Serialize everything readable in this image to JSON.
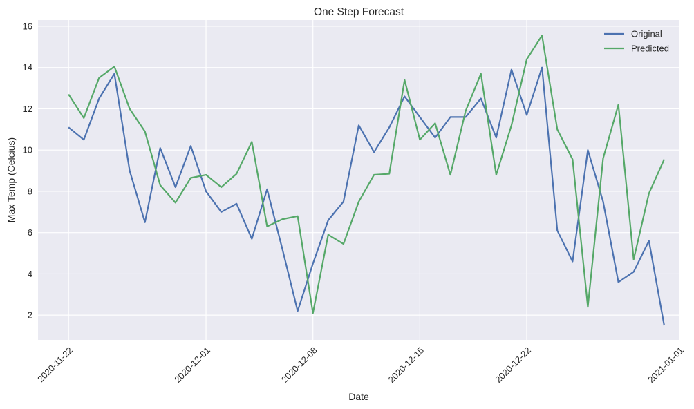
{
  "chart_data": {
    "type": "line",
    "title": "One Step Forecast",
    "xlabel": "Date",
    "ylabel": "Max Temp (Celcius)",
    "x": [
      "2020-11-22",
      "2020-11-23",
      "2020-11-24",
      "2020-11-25",
      "2020-11-26",
      "2020-11-27",
      "2020-11-28",
      "2020-11-29",
      "2020-11-30",
      "2020-12-01",
      "2020-12-02",
      "2020-12-03",
      "2020-12-04",
      "2020-12-05",
      "2020-12-06",
      "2020-12-07",
      "2020-12-08",
      "2020-12-09",
      "2020-12-10",
      "2020-12-11",
      "2020-12-12",
      "2020-12-13",
      "2020-12-14",
      "2020-12-15",
      "2020-12-16",
      "2020-12-17",
      "2020-12-18",
      "2020-12-19",
      "2020-12-20",
      "2020-12-21",
      "2020-12-22",
      "2020-12-23",
      "2020-12-24",
      "2020-12-25",
      "2020-12-26",
      "2020-12-27",
      "2020-12-28",
      "2020-12-29",
      "2020-12-30",
      "2020-12-31"
    ],
    "series": [
      {
        "name": "Original",
        "color": "#4c72b0",
        "values": [
          11.1,
          10.5,
          12.5,
          13.7,
          9.0,
          6.5,
          10.1,
          8.2,
          10.2,
          8.0,
          7.0,
          7.4,
          5.7,
          8.1,
          5.2,
          2.2,
          4.5,
          6.6,
          7.5,
          11.2,
          9.9,
          11.1,
          12.6,
          11.6,
          10.6,
          11.6,
          11.6,
          12.5,
          10.6,
          13.9,
          11.7,
          14.0,
          6.1,
          4.6,
          10.0,
          7.5,
          3.6,
          4.1,
          5.6,
          1.5
        ]
      },
      {
        "name": "Predicted",
        "color": "#55a868",
        "values": [
          12.7,
          11.55,
          13.5,
          14.05,
          12.0,
          10.9,
          8.3,
          7.45,
          8.65,
          8.8,
          8.2,
          8.85,
          10.4,
          6.3,
          6.65,
          6.8,
          2.1,
          5.9,
          5.45,
          7.5,
          8.8,
          8.85,
          13.4,
          10.5,
          11.3,
          8.8,
          11.9,
          13.7,
          8.8,
          11.2,
          14.4,
          15.55,
          11.0,
          9.55,
          2.4,
          9.6,
          12.2,
          4.7,
          7.9,
          9.55
        ]
      }
    ],
    "xticks": [
      "2020-11-22",
      "2020-12-01",
      "2020-12-08",
      "2020-12-15",
      "2020-12-22",
      "2021-01-01"
    ],
    "yticks": [
      2,
      4,
      6,
      8,
      10,
      12,
      14,
      16
    ],
    "xlim": [
      "2020-11-20",
      "2021-01-01"
    ],
    "ylim": [
      0.8,
      16.3
    ],
    "grid": true,
    "legend": "top-right",
    "background_color": "#eaeaf2"
  }
}
